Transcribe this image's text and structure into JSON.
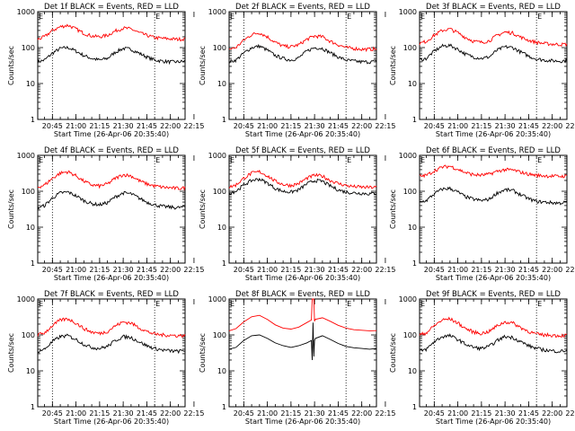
{
  "figure": {
    "marker_label": "E",
    "ylabel": "Counts/sec",
    "xlabel": "Start Time (26-Apr-06 20:35:40)",
    "x_tick_labels": [
      "20:45",
      "21:00",
      "21:15",
      "21:30",
      "21:45",
      "22:00",
      "22:15"
    ],
    "y_tick_labels": [
      "1",
      "10",
      "100",
      "1000"
    ],
    "colors": {
      "events": "#000000",
      "lld": "#ff0000"
    }
  },
  "chart_data": [
    {
      "type": "line",
      "title": "Det 1f BLACK = Events, RED = LLD",
      "xlim_min": [
        5.67,
        99.33
      ],
      "ylim": [
        1,
        1000
      ],
      "yscale": "log",
      "dotted_x_min": [
        15,
        80
      ],
      "series": [
        {
          "name": "Events",
          "color": "#000000",
          "x_min": [
            5.67,
            10,
            15,
            20,
            25,
            30,
            35,
            40,
            45,
            50,
            55,
            60,
            65,
            70,
            75,
            80,
            85,
            90,
            95,
            99.33
          ],
          "values": [
            40,
            45,
            70,
            95,
            100,
            80,
            60,
            50,
            45,
            50,
            75,
            95,
            90,
            70,
            55,
            45,
            42,
            40,
            40,
            42
          ]
        },
        {
          "name": "LLD",
          "color": "#ff0000",
          "x_min": [
            5.67,
            10,
            15,
            20,
            25,
            30,
            35,
            40,
            45,
            50,
            55,
            60,
            65,
            70,
            75,
            80,
            85,
            90,
            95,
            99.33
          ],
          "values": [
            170,
            200,
            300,
            380,
            420,
            330,
            250,
            210,
            200,
            220,
            290,
            350,
            330,
            260,
            220,
            190,
            180,
            175,
            170,
            175
          ]
        }
      ]
    },
    {
      "type": "line",
      "title": "Det 2f BLACK = Events, RED = LLD",
      "xlim_min": [
        5.67,
        99.33
      ],
      "ylim": [
        1,
        1000
      ],
      "yscale": "log",
      "dotted_x_min": [
        15,
        80
      ],
      "series": [
        {
          "name": "Events",
          "color": "#000000",
          "x_min": [
            5.67,
            10,
            15,
            20,
            25,
            30,
            35,
            40,
            45,
            50,
            55,
            60,
            65,
            70,
            75,
            80,
            85,
            90,
            95,
            99.33
          ],
          "values": [
            40,
            45,
            70,
            100,
            110,
            85,
            60,
            50,
            45,
            52,
            80,
            100,
            95,
            72,
            55,
            45,
            42,
            40,
            40,
            42
          ]
        },
        {
          "name": "LLD",
          "color": "#ff0000",
          "x_min": [
            5.67,
            10,
            15,
            20,
            25,
            30,
            35,
            40,
            45,
            50,
            55,
            60,
            65,
            70,
            75,
            80,
            85,
            90,
            95,
            99.33
          ],
          "values": [
            90,
            100,
            160,
            230,
            260,
            200,
            140,
            110,
            105,
            120,
            170,
            210,
            200,
            150,
            120,
            100,
            95,
            90,
            90,
            92
          ]
        }
      ]
    },
    {
      "type": "line",
      "title": "Det 3f BLACK = Events, RED = LLD",
      "xlim_min": [
        5.67,
        99.33
      ],
      "ylim": [
        1,
        1000
      ],
      "yscale": "log",
      "dotted_x_min": [
        15,
        80
      ],
      "series": [
        {
          "name": "Events",
          "color": "#000000",
          "x_min": [
            5.67,
            10,
            15,
            20,
            25,
            30,
            35,
            40,
            45,
            50,
            55,
            60,
            65,
            70,
            75,
            80,
            85,
            90,
            95,
            99.33
          ],
          "values": [
            45,
            50,
            80,
            110,
            115,
            90,
            65,
            55,
            50,
            55,
            85,
            105,
            100,
            75,
            58,
            48,
            45,
            43,
            42,
            44
          ]
        },
        {
          "name": "LLD",
          "color": "#ff0000",
          "x_min": [
            5.67,
            10,
            15,
            20,
            25,
            30,
            35,
            40,
            45,
            50,
            55,
            60,
            65,
            70,
            75,
            80,
            85,
            90,
            95,
            99.33
          ],
          "values": [
            130,
            150,
            220,
            300,
            330,
            260,
            190,
            150,
            140,
            155,
            220,
            270,
            255,
            195,
            160,
            140,
            130,
            125,
            122,
            125
          ]
        }
      ]
    },
    {
      "type": "line",
      "title": "Det 4f BLACK = Events, RED = LLD",
      "xlim_min": [
        5.67,
        99.33
      ],
      "ylim": [
        1,
        1000
      ],
      "yscale": "log",
      "dotted_x_min": [
        15,
        80
      ],
      "series": [
        {
          "name": "Events",
          "color": "#000000",
          "x_min": [
            5.67,
            10,
            15,
            20,
            25,
            30,
            35,
            40,
            45,
            50,
            55,
            60,
            65,
            70,
            75,
            80,
            85,
            90,
            95,
            99.33
          ],
          "values": [
            35,
            40,
            65,
            90,
            95,
            75,
            55,
            45,
            42,
            48,
            70,
            90,
            85,
            65,
            50,
            42,
            38,
            36,
            35,
            37
          ]
        },
        {
          "name": "LLD",
          "color": "#ff0000",
          "x_min": [
            5.67,
            10,
            15,
            20,
            25,
            30,
            35,
            40,
            45,
            50,
            55,
            60,
            65,
            70,
            75,
            80,
            85,
            90,
            95,
            99.33
          ],
          "values": [
            130,
            150,
            230,
            320,
            350,
            270,
            190,
            150,
            140,
            160,
            230,
            290,
            270,
            200,
            160,
            140,
            130,
            125,
            120,
            125
          ]
        }
      ]
    },
    {
      "type": "line",
      "title": "Det 5f BLACK = Events, RED = LLD",
      "xlim_min": [
        5.67,
        99.33
      ],
      "ylim": [
        1,
        1000
      ],
      "yscale": "log",
      "dotted_x_min": [
        15,
        80
      ],
      "series": [
        {
          "name": "Events",
          "color": "#000000",
          "x_min": [
            5.67,
            10,
            15,
            20,
            25,
            30,
            35,
            40,
            45,
            50,
            55,
            60,
            65,
            70,
            75,
            80,
            85,
            90,
            95,
            99.33
          ],
          "values": [
            90,
            100,
            150,
            200,
            220,
            170,
            120,
            100,
            95,
            110,
            160,
            200,
            190,
            140,
            110,
            95,
            90,
            88,
            85,
            88
          ]
        },
        {
          "name": "LLD",
          "color": "#ff0000",
          "x_min": [
            5.67,
            10,
            15,
            20,
            25,
            30,
            35,
            40,
            45,
            50,
            55,
            60,
            65,
            70,
            75,
            80,
            85,
            90,
            95,
            99.33
          ],
          "values": [
            130,
            150,
            230,
            320,
            350,
            270,
            190,
            155,
            145,
            165,
            230,
            280,
            265,
            200,
            165,
            145,
            135,
            130,
            128,
            130
          ]
        }
      ]
    },
    {
      "type": "line",
      "title": "Det 6f BLACK = Events, RED = LLD",
      "xlim_min": [
        5.67,
        99.33
      ],
      "ylim": [
        1,
        1000
      ],
      "yscale": "log",
      "dotted_x_min": [
        15,
        80
      ],
      "series": [
        {
          "name": "Events",
          "color": "#000000",
          "x_min": [
            5.67,
            10,
            15,
            20,
            25,
            30,
            35,
            40,
            45,
            50,
            55,
            60,
            65,
            70,
            75,
            80,
            85,
            90,
            95,
            99.33
          ],
          "values": [
            50,
            55,
            85,
            115,
            120,
            95,
            70,
            60,
            55,
            60,
            90,
            110,
            105,
            80,
            62,
            52,
            50,
            48,
            47,
            50
          ]
        },
        {
          "name": "LLD",
          "color": "#ff0000",
          "x_min": [
            5.67,
            10,
            15,
            20,
            25,
            30,
            35,
            40,
            45,
            50,
            55,
            60,
            65,
            70,
            75,
            80,
            85,
            90,
            95,
            99.33
          ],
          "values": [
            260,
            280,
            370,
            470,
            500,
            410,
            330,
            290,
            280,
            300,
            360,
            400,
            390,
            340,
            300,
            280,
            270,
            265,
            260,
            265
          ]
        }
      ]
    },
    {
      "type": "line",
      "title": "Det 7f BLACK = Events, RED = LLD",
      "xlim_min": [
        5.67,
        99.33
      ],
      "ylim": [
        1,
        1000
      ],
      "yscale": "log",
      "dotted_x_min": [
        15,
        80
      ],
      "series": [
        {
          "name": "Events",
          "color": "#000000",
          "x_min": [
            5.67,
            10,
            15,
            20,
            25,
            30,
            35,
            40,
            45,
            50,
            55,
            60,
            65,
            70,
            75,
            80,
            85,
            90,
            95,
            99.33
          ],
          "values": [
            35,
            40,
            65,
            90,
            95,
            75,
            55,
            45,
            42,
            48,
            70,
            90,
            85,
            65,
            50,
            42,
            38,
            36,
            35,
            37
          ]
        },
        {
          "name": "LLD",
          "color": "#ff0000",
          "x_min": [
            5.67,
            10,
            15,
            20,
            25,
            30,
            35,
            40,
            45,
            50,
            55,
            60,
            65,
            70,
            75,
            80,
            85,
            90,
            95,
            99.33
          ],
          "values": [
            100,
            115,
            180,
            260,
            280,
            215,
            150,
            120,
            110,
            125,
            180,
            230,
            215,
            160,
            125,
            105,
            100,
            98,
            95,
            98
          ]
        }
      ]
    },
    {
      "type": "line",
      "title": "Det 8f BLACK = Events, RED = LLD",
      "xlim_min": [
        5.67,
        99.33
      ],
      "ylim": [
        1,
        1000
      ],
      "yscale": "log",
      "dotted_x_min": [
        15,
        80
      ],
      "series": [
        {
          "name": "Events",
          "color": "#000000",
          "x_min": [
            5.67,
            10,
            15,
            20,
            25,
            30,
            35,
            40,
            45,
            50,
            55,
            58,
            58.5,
            59,
            59.5,
            60,
            60.5,
            65,
            70,
            75,
            80,
            85,
            90,
            95,
            99.33
          ],
          "values": [
            40,
            45,
            70,
            95,
            100,
            80,
            60,
            50,
            45,
            50,
            60,
            70,
            20,
            220,
            25,
            70,
            80,
            95,
            75,
            58,
            48,
            44,
            42,
            40,
            42
          ]
        },
        {
          "name": "LLD",
          "color": "#ff0000",
          "x_min": [
            5.67,
            10,
            15,
            20,
            25,
            30,
            35,
            40,
            45,
            50,
            55,
            58,
            58.5,
            59,
            59.5,
            60,
            60.5,
            65,
            70,
            75,
            80,
            85,
            90,
            95,
            99.33
          ],
          "values": [
            130,
            150,
            230,
            320,
            350,
            270,
            190,
            155,
            145,
            165,
            220,
            260,
            1000,
            1000,
            1000,
            240,
            270,
            300,
            240,
            185,
            155,
            140,
            135,
            130,
            132
          ]
        }
      ]
    },
    {
      "type": "line",
      "title": "Det 9f BLACK = Events, RED = LLD",
      "xlim_min": [
        5.67,
        99.33
      ],
      "ylim": [
        1,
        1000
      ],
      "yscale": "log",
      "dotted_x_min": [
        15,
        80
      ],
      "series": [
        {
          "name": "Events",
          "color": "#000000",
          "x_min": [
            5.67,
            10,
            15,
            20,
            25,
            30,
            35,
            40,
            45,
            50,
            55,
            60,
            65,
            70,
            75,
            80,
            85,
            90,
            95,
            99.33
          ],
          "values": [
            35,
            40,
            65,
            90,
            95,
            75,
            55,
            45,
            42,
            48,
            70,
            90,
            85,
            65,
            50,
            42,
            38,
            36,
            35,
            37
          ]
        },
        {
          "name": "LLD",
          "color": "#ff0000",
          "x_min": [
            5.67,
            10,
            15,
            20,
            25,
            30,
            35,
            40,
            45,
            50,
            55,
            60,
            65,
            70,
            75,
            80,
            85,
            90,
            95,
            99.33
          ],
          "values": [
            100,
            115,
            180,
            260,
            280,
            215,
            150,
            120,
            110,
            125,
            180,
            230,
            215,
            160,
            125,
            105,
            100,
            98,
            95,
            98
          ]
        }
      ]
    }
  ]
}
